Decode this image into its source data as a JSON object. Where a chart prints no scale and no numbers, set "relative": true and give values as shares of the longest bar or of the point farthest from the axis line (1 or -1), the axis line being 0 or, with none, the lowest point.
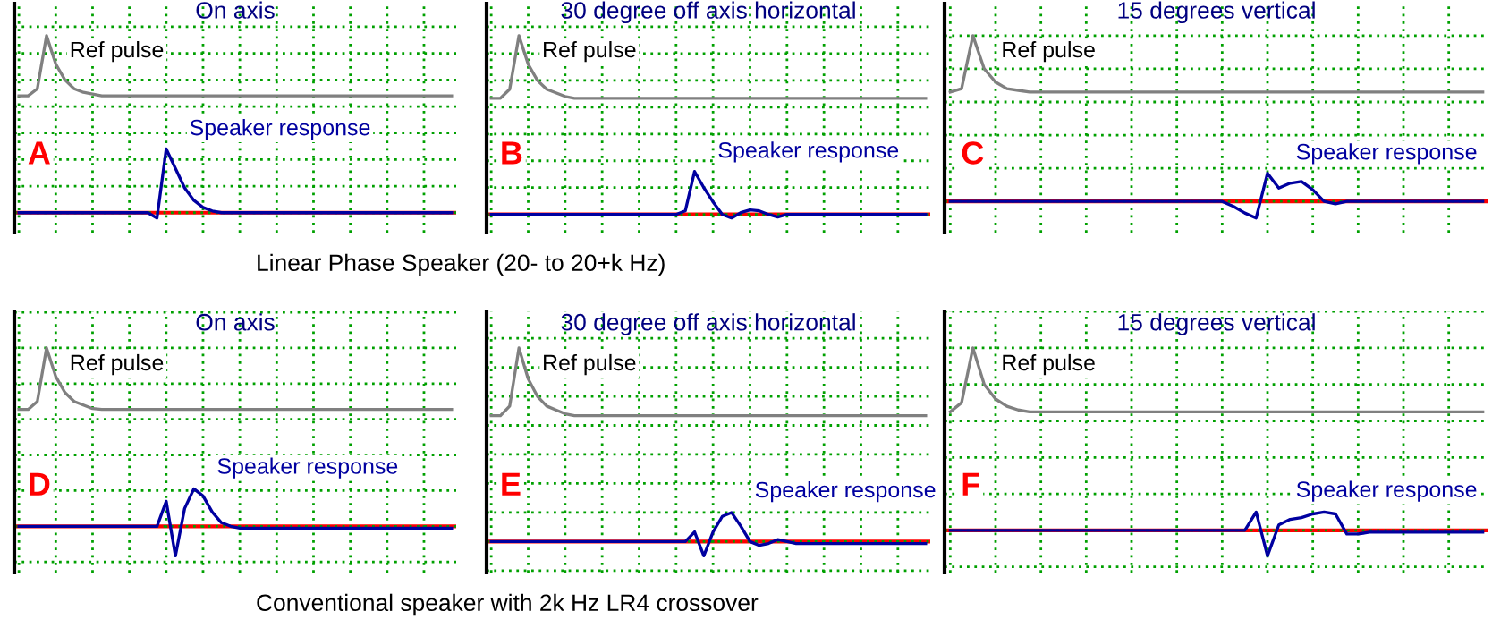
{
  "chart_data": [
    {
      "type": "line",
      "title": "On axis",
      "relative": true,
      "grid": true,
      "tick_labels": false,
      "annotations": [
        "A",
        "Linear Phase Speaker (20- to 20+k Hz)"
      ],
      "categories": [
        null,
        null,
        null,
        null,
        null,
        null,
        null,
        null,
        null,
        null,
        null,
        null,
        null,
        null,
        null,
        null,
        null,
        null,
        null,
        null,
        null,
        null,
        null,
        null,
        null,
        null,
        null,
        null,
        null,
        null,
        null,
        null,
        null,
        null,
        null,
        null,
        null,
        null,
        null,
        null,
        null,
        null,
        null,
        null,
        null,
        null,
        null,
        null
      ],
      "ref_lines": [
        {
          "axis": "y",
          "value": 0,
          "color": "#ff0000"
        }
      ],
      "series": [
        {
          "name": "Ref pulse",
          "color": "#808080",
          "values": [
            0.66,
            0.66,
            0.7,
            1.0,
            0.84,
            0.75,
            0.7,
            0.68,
            0.67,
            0.66,
            0.66,
            0.66,
            0.66,
            0.66,
            0.66,
            0.66,
            0.66,
            0.66,
            0.66,
            0.66,
            0.66,
            0.66,
            0.66,
            0.66,
            0.66,
            0.66,
            0.66,
            0.66,
            0.66,
            0.66,
            0.66,
            0.66,
            0.66,
            0.66,
            0.66,
            0.66,
            0.66,
            0.66,
            0.66,
            0.66,
            0.66,
            0.66,
            0.66,
            0.66,
            0.66,
            0.66,
            0.66,
            0.66
          ]
        },
        {
          "name": "Speaker response",
          "color": "#0000a0",
          "values": [
            0,
            0,
            0,
            0,
            0,
            0,
            0,
            0,
            0,
            0,
            0,
            0,
            0,
            0,
            0,
            -0.03,
            0.36,
            0.25,
            0.14,
            0.07,
            0.03,
            0.01,
            0,
            0,
            0,
            0,
            0,
            0,
            0,
            0,
            0,
            0,
            0,
            0,
            0,
            0,
            0,
            0,
            0,
            0,
            0,
            0,
            0,
            0,
            0,
            0,
            0,
            0
          ]
        }
      ]
    },
    {
      "type": "line",
      "title": "30 degree off axis horizontal",
      "relative": true,
      "grid": true,
      "tick_labels": false,
      "annotations": [
        "B"
      ],
      "categories": [
        null,
        null,
        null,
        null,
        null,
        null,
        null,
        null,
        null,
        null,
        null,
        null,
        null,
        null,
        null,
        null,
        null,
        null,
        null,
        null,
        null,
        null,
        null,
        null,
        null,
        null,
        null,
        null,
        null,
        null,
        null,
        null,
        null,
        null,
        null,
        null,
        null,
        null,
        null,
        null,
        null,
        null,
        null,
        null,
        null,
        null,
        null,
        null
      ],
      "ref_lines": [
        {
          "axis": "y",
          "value": 0,
          "color": "#ff0000"
        }
      ],
      "series": [
        {
          "name": "Ref pulse",
          "color": "#808080",
          "values": [
            0.65,
            0.65,
            0.7,
            1.0,
            0.84,
            0.75,
            0.7,
            0.68,
            0.66,
            0.65,
            0.65,
            0.65,
            0.65,
            0.65,
            0.65,
            0.65,
            0.65,
            0.65,
            0.65,
            0.65,
            0.65,
            0.65,
            0.65,
            0.65,
            0.65,
            0.65,
            0.65,
            0.65,
            0.65,
            0.65,
            0.65,
            0.65,
            0.65,
            0.65,
            0.65,
            0.65,
            0.65,
            0.65,
            0.65,
            0.65,
            0.65,
            0.65,
            0.65,
            0.65,
            0.65,
            0.65,
            0.65,
            0.65
          ]
        },
        {
          "name": "Speaker response",
          "color": "#0000a0",
          "values": [
            0,
            0,
            0,
            0,
            0,
            0,
            0,
            0,
            0,
            0,
            0,
            0,
            0,
            0,
            0,
            0,
            0,
            0,
            0,
            0,
            0,
            0.02,
            0.24,
            0.15,
            0.07,
            0,
            -0.02,
            0.01,
            0.025,
            0.02,
            0,
            -0.015,
            0,
            0,
            0,
            0,
            0,
            0,
            0,
            0,
            0,
            0,
            0,
            0,
            0,
            0,
            0,
            0
          ]
        }
      ]
    },
    {
      "type": "line",
      "title": "15 degrees vertical",
      "relative": true,
      "grid": true,
      "tick_labels": false,
      "annotations": [
        "C"
      ],
      "categories": [
        null,
        null,
        null,
        null,
        null,
        null,
        null,
        null,
        null,
        null,
        null,
        null,
        null,
        null,
        null,
        null,
        null,
        null,
        null,
        null,
        null,
        null,
        null,
        null,
        null,
        null,
        null,
        null,
        null,
        null,
        null,
        null,
        null,
        null,
        null,
        null,
        null,
        null,
        null,
        null,
        null,
        null,
        null,
        null,
        null,
        null,
        null,
        null
      ],
      "ref_lines": [
        {
          "axis": "y",
          "value": 0,
          "color": "#ff0000"
        }
      ],
      "series": [
        {
          "name": "Ref pulse",
          "color": "#808080",
          "values": [
            0.66,
            0.68,
            1.0,
            0.8,
            0.72,
            0.68,
            0.67,
            0.66,
            0.66,
            0.66,
            0.66,
            0.66,
            0.66,
            0.66,
            0.66,
            0.66,
            0.66,
            0.66,
            0.66,
            0.66,
            0.66,
            0.66,
            0.66,
            0.66,
            0.66,
            0.66,
            0.66,
            0.66,
            0.66,
            0.66,
            0.66,
            0.66,
            0.66,
            0.66,
            0.66,
            0.66,
            0.66,
            0.66,
            0.66,
            0.66,
            0.66,
            0.66,
            0.66,
            0.66,
            0.66,
            0.66,
            0.66,
            0.66
          ]
        },
        {
          "name": "Speaker response",
          "color": "#0000a0",
          "values": [
            0,
            0,
            0,
            0,
            0,
            0,
            0,
            0,
            0,
            0,
            0,
            0,
            0,
            0,
            0,
            0,
            0,
            0,
            0,
            0,
            0,
            0,
            0,
            0,
            0,
            -0.03,
            -0.07,
            -0.1,
            0.17,
            0.08,
            0.11,
            0.12,
            0.07,
            0,
            -0.015,
            0,
            0,
            0,
            0,
            0,
            0,
            0,
            0,
            0,
            0,
            0,
            0,
            0
          ]
        }
      ]
    },
    {
      "type": "line",
      "title": "On axis",
      "relative": true,
      "grid": true,
      "tick_labels": false,
      "annotations": [
        "D",
        "Conventional speaker with 2k Hz LR4 crossover"
      ],
      "categories": [
        null,
        null,
        null,
        null,
        null,
        null,
        null,
        null,
        null,
        null,
        null,
        null,
        null,
        null,
        null,
        null,
        null,
        null,
        null,
        null,
        null,
        null,
        null,
        null,
        null,
        null,
        null,
        null,
        null,
        null,
        null,
        null,
        null,
        null,
        null,
        null,
        null,
        null,
        null,
        null,
        null,
        null,
        null,
        null,
        null,
        null,
        null,
        null
      ],
      "ref_lines": [
        {
          "axis": "y",
          "value": 0,
          "color": "#ff0000"
        }
      ],
      "series": [
        {
          "name": "Ref pulse",
          "color": "#808080",
          "values": [
            0.655,
            0.655,
            0.7,
            1.0,
            0.84,
            0.75,
            0.7,
            0.68,
            0.66,
            0.655,
            0.655,
            0.655,
            0.655,
            0.655,
            0.655,
            0.655,
            0.655,
            0.655,
            0.655,
            0.655,
            0.655,
            0.655,
            0.655,
            0.655,
            0.655,
            0.655,
            0.655,
            0.655,
            0.655,
            0.655,
            0.655,
            0.655,
            0.655,
            0.655,
            0.655,
            0.655,
            0.655,
            0.655,
            0.655,
            0.655,
            0.655,
            0.655,
            0.655,
            0.655,
            0.655,
            0.655,
            0.655,
            0.655
          ]
        },
        {
          "name": "Speaker response",
          "color": "#0000a0",
          "values": [
            0,
            0,
            0,
            0,
            0,
            0,
            0,
            0,
            0,
            0,
            0,
            0,
            0,
            0,
            0,
            0,
            0.14,
            -0.166,
            0.1,
            0.21,
            0.17,
            0.08,
            0.02,
            0,
            -0.01,
            -0.01,
            -0.01,
            -0.01,
            -0.01,
            -0.01,
            -0.01,
            -0.01,
            -0.01,
            -0.01,
            -0.01,
            -0.01,
            -0.01,
            -0.01,
            -0.01,
            -0.01,
            -0.01,
            -0.01,
            -0.01,
            -0.01,
            -0.01,
            -0.01,
            -0.01,
            -0.01
          ]
        }
      ]
    },
    {
      "type": "line",
      "title": "30 degree off axis horizontal",
      "relative": true,
      "grid": true,
      "tick_labels": false,
      "annotations": [
        "E"
      ],
      "categories": [
        null,
        null,
        null,
        null,
        null,
        null,
        null,
        null,
        null,
        null,
        null,
        null,
        null,
        null,
        null,
        null,
        null,
        null,
        null,
        null,
        null,
        null,
        null,
        null,
        null,
        null,
        null,
        null,
        null,
        null,
        null,
        null,
        null,
        null,
        null,
        null,
        null,
        null,
        null,
        null,
        null,
        null,
        null,
        null,
        null,
        null,
        null,
        null
      ],
      "ref_lines": [
        {
          "axis": "y",
          "value": 0,
          "color": "#ff0000"
        }
      ],
      "series": [
        {
          "name": "Ref pulse",
          "color": "#808080",
          "values": [
            0.65,
            0.65,
            0.7,
            1.0,
            0.84,
            0.75,
            0.7,
            0.68,
            0.66,
            0.65,
            0.65,
            0.65,
            0.65,
            0.65,
            0.65,
            0.65,
            0.65,
            0.65,
            0.65,
            0.65,
            0.65,
            0.65,
            0.65,
            0.65,
            0.65,
            0.65,
            0.65,
            0.65,
            0.65,
            0.65,
            0.65,
            0.65,
            0.65,
            0.65,
            0.65,
            0.65,
            0.65,
            0.65,
            0.65,
            0.65,
            0.65,
            0.65,
            0.65,
            0.65,
            0.65,
            0.65,
            0.65,
            0.65
          ]
        },
        {
          "name": "Speaker response",
          "color": "#0000a0",
          "values": [
            0,
            0,
            0,
            0,
            0,
            0,
            0,
            0,
            0,
            0,
            0,
            0,
            0,
            0,
            0,
            0,
            0,
            0,
            0,
            0,
            0,
            0,
            0.05,
            -0.074,
            0.05,
            0.13,
            0.15,
            0.08,
            0,
            -0.02,
            -0.01,
            0.01,
            0,
            -0.01,
            -0.01,
            -0.01,
            -0.01,
            -0.01,
            -0.01,
            -0.01,
            -0.01,
            -0.01,
            -0.01,
            -0.01,
            -0.01,
            -0.01,
            -0.01,
            -0.01
          ]
        }
      ]
    },
    {
      "type": "line",
      "title": "15 degrees vertical",
      "relative": true,
      "grid": true,
      "tick_labels": false,
      "annotations": [
        "F"
      ],
      "categories": [
        null,
        null,
        null,
        null,
        null,
        null,
        null,
        null,
        null,
        null,
        null,
        null,
        null,
        null,
        null,
        null,
        null,
        null,
        null,
        null,
        null,
        null,
        null,
        null,
        null,
        null,
        null,
        null,
        null,
        null,
        null,
        null,
        null,
        null,
        null,
        null,
        null,
        null,
        null,
        null,
        null,
        null,
        null,
        null,
        null,
        null,
        null,
        null
      ],
      "ref_lines": [
        {
          "axis": "y",
          "value": 0,
          "color": "#ff0000"
        }
      ],
      "series": [
        {
          "name": "Ref pulse",
          "color": "#808080",
          "values": [
            0.65,
            0.7,
            1.0,
            0.8,
            0.72,
            0.68,
            0.66,
            0.65,
            0.65,
            0.65,
            0.65,
            0.65,
            0.65,
            0.65,
            0.65,
            0.65,
            0.65,
            0.65,
            0.65,
            0.65,
            0.65,
            0.65,
            0.65,
            0.65,
            0.65,
            0.65,
            0.65,
            0.65,
            0.65,
            0.65,
            0.65,
            0.65,
            0.65,
            0.65,
            0.65,
            0.65,
            0.65,
            0.65,
            0.65,
            0.65,
            0.65,
            0.65,
            0.65,
            0.65,
            0.65,
            0.65,
            0.65,
            0.65
          ]
        },
        {
          "name": "Speaker response",
          "color": "#0000a0",
          "values": [
            0,
            0,
            0,
            0,
            0,
            0,
            0,
            0,
            0,
            0,
            0,
            0,
            0,
            0,
            0,
            0,
            0,
            0,
            0,
            0,
            0,
            0,
            0,
            0,
            0,
            0,
            0,
            0.1,
            -0.14,
            0.03,
            0.06,
            0.07,
            0.09,
            0.1,
            0.09,
            -0.02,
            -0.02,
            -0.01,
            -0.01,
            -0.01,
            -0.01,
            -0.01,
            -0.01,
            -0.01,
            -0.01,
            -0.01,
            -0.01,
            -0.01
          ]
        }
      ]
    }
  ]
}
